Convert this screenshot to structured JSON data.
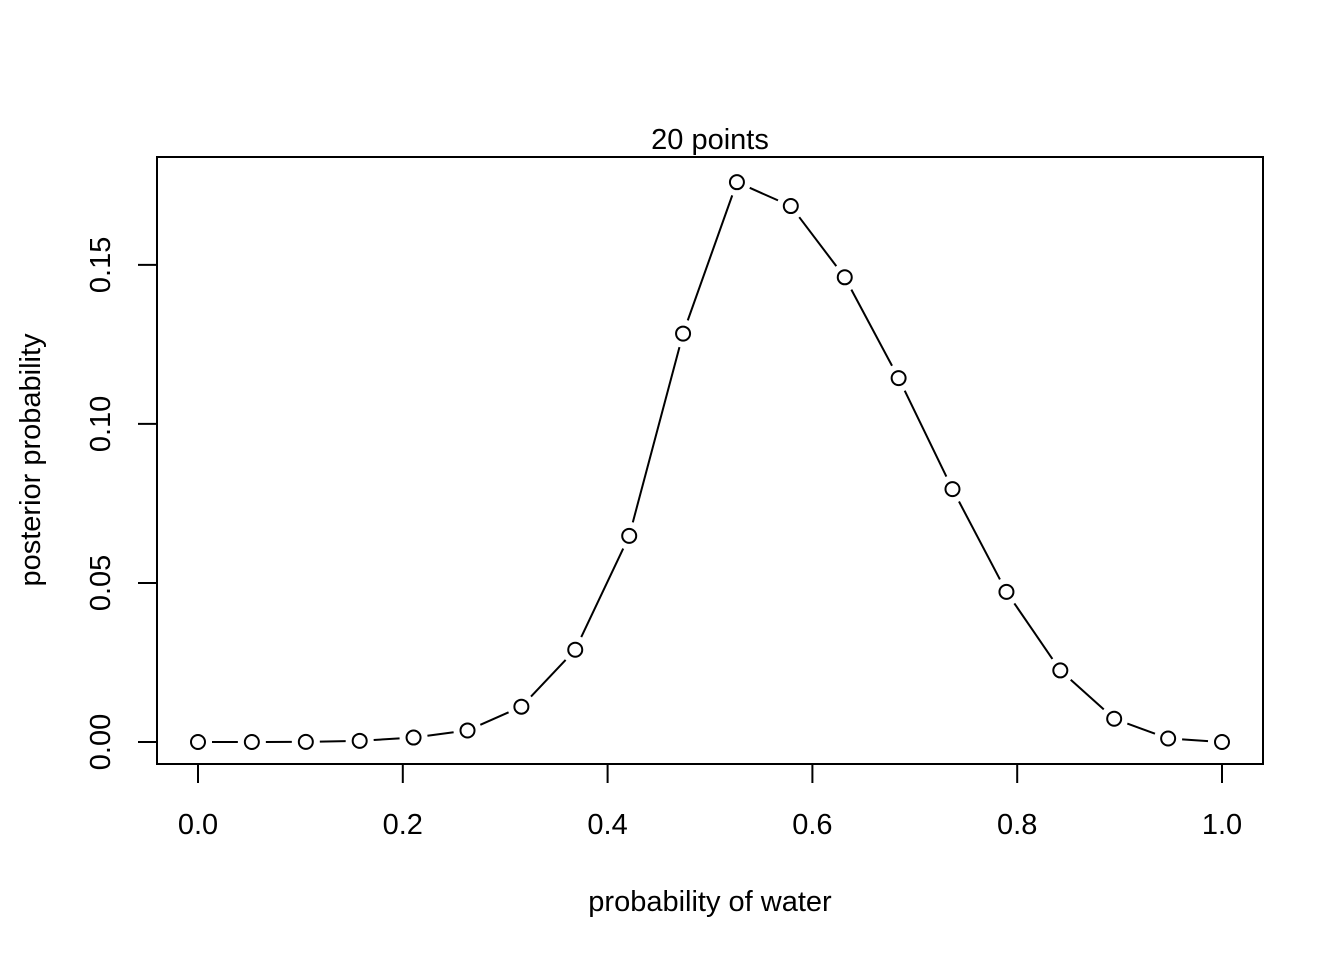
{
  "chart_data": {
    "type": "line",
    "title": "20 points",
    "xlabel": "probability of water",
    "ylabel": "posterior probability",
    "xlim": [
      0,
      1
    ],
    "ylim": [
      0,
      0.177
    ],
    "x_ticks": [
      0.0,
      0.2,
      0.4,
      0.6,
      0.8,
      1.0
    ],
    "x_tick_labels": [
      "0.0",
      "0.2",
      "0.4",
      "0.6",
      "0.8",
      "1.0"
    ],
    "y_ticks": [
      0.0,
      0.05,
      0.1,
      0.15
    ],
    "y_tick_labels": [
      "0.00",
      "0.05",
      "0.10",
      "0.15"
    ],
    "grid": false,
    "marker": "open-circle",
    "line_style": "solid-with-gaps-at-points",
    "series": [
      {
        "x": [
          0.0,
          0.0526,
          0.1053,
          0.1579,
          0.2105,
          0.2632,
          0.3158,
          0.3684,
          0.4211,
          0.4737,
          0.5263,
          0.5789,
          0.6316,
          0.6842,
          0.7368,
          0.7895,
          0.8421,
          0.8947,
          0.9474,
          1.0
        ],
        "values": [
          0.0,
          8e-07,
          4.31e-05,
          0.0003656,
          0.0013966,
          0.0036251,
          0.0111,
          0.029,
          0.0648,
          0.1284,
          0.176,
          0.1685,
          0.1461,
          0.1144,
          0.0795,
          0.0472,
          0.0225,
          0.0073,
          0.0011,
          0.0
        ]
      }
    ]
  }
}
